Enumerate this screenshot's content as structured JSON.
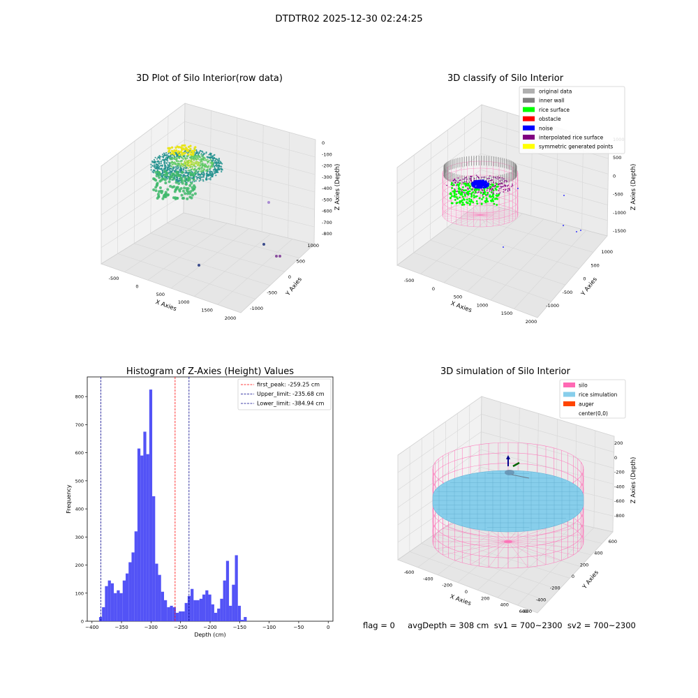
{
  "suptitle": "DTDTR02 2025-12-30 02:24:25",
  "colors": {
    "hist_bar": "#4a4af5",
    "first_peak_line": "#ff0000",
    "limit_line": "#00008b",
    "silo": "#ff69b4",
    "rice_simulation": "#87ceeb",
    "auger": "#ff4500",
    "original_data": "#b0b0b0",
    "inner_wall": "#808080",
    "rice_surface": "#00ff00",
    "obstacle": "#ff0000",
    "noise": "#0000ff",
    "interpolated_rice_surface": "#800080",
    "symmetric_generated_points": "#ffff00"
  },
  "chart_data": [
    {
      "type": "scatter",
      "title": "3D Plot of Silo Interior(row data)",
      "xlabel": "X Axies",
      "ylabel": "Y Axies",
      "zlabel": "Z Axies (Depth)",
      "x_ticks": [
        "-500",
        "0",
        "500",
        "1000",
        "1500",
        "2000"
      ],
      "y_ticks": [
        "-1000",
        "-500",
        "0",
        "500",
        "1000"
      ],
      "z_ticks": [
        "0",
        "-100",
        "-200",
        "-300",
        "-400",
        "-500",
        "-600",
        "-700",
        "-800"
      ],
      "xlim": [
        -700,
        2100
      ],
      "ylim": [
        -1200,
        1100
      ],
      "zlim": [
        -850,
        30
      ]
    },
    {
      "type": "scatter",
      "title": "3D classify of Silo Interior",
      "xlabel": "X Axies",
      "ylabel": "Y Axies",
      "zlabel": "Z Axies (Depth)",
      "x_ticks": [
        "-500",
        "0",
        "500",
        "1000",
        "1500",
        "2000"
      ],
      "y_ticks": [
        "-1000",
        "-500",
        "0",
        "500",
        "1000"
      ],
      "z_ticks": [
        "1000",
        "500",
        "0",
        "-500",
        "-1000",
        "-1500"
      ],
      "legend": [
        "original data",
        "inner wall",
        "rice surface",
        "obstacle",
        "noise",
        "interpolated rice surface",
        "symmetric generated points"
      ],
      "legend_loc": "top-right"
    },
    {
      "type": "bar",
      "title": "Histogram of Z-Axies (Height) Values",
      "xlabel": "Depth (cm)",
      "ylabel": "Frequency",
      "xlim": [
        -408,
        8
      ],
      "ylim": [
        0,
        870
      ],
      "x_ticks": [
        -400,
        -350,
        -300,
        -250,
        -200,
        -150,
        -100,
        -50,
        0
      ],
      "y_ticks": [
        0,
        100,
        200,
        300,
        400,
        500,
        600,
        700,
        800
      ],
      "bin_start": -388,
      "bin_width": 5,
      "values": [
        15,
        50,
        125,
        145,
        135,
        100,
        110,
        100,
        145,
        170,
        210,
        245,
        320,
        615,
        590,
        675,
        595,
        825,
        445,
        205,
        165,
        105,
        75,
        50,
        55,
        50,
        30,
        35,
        35,
        65,
        90,
        115,
        75,
        75,
        80,
        95,
        110,
        95,
        60,
        30,
        45,
        80,
        145,
        215,
        55,
        130,
        235,
        55,
        5,
        15
      ],
      "vlines": [
        {
          "label": "first_peak: -259.25 cm",
          "x": -259.25,
          "color": "red"
        },
        {
          "label": "Upper_limit: -235.68 cm",
          "x": -235.68,
          "color": "navy"
        },
        {
          "label": "Lower_limit: -384.94 cm",
          "x": -384.94,
          "color": "navy"
        }
      ],
      "legend_loc": "top-right"
    },
    {
      "type": "scatter",
      "title": "3D simulation of Silo Interior",
      "xlabel": "X Axies",
      "ylabel": "Y Axies",
      "zlabel": "Z Axies (Depth)",
      "x_ticks": [
        "-600",
        "-400",
        "-200",
        "0",
        "200",
        "400",
        "600"
      ],
      "y_ticks": [
        "-600",
        "-400",
        "-200",
        "0",
        "200",
        "400",
        "600"
      ],
      "z_ticks": [
        "200",
        "0",
        "-200",
        "-400",
        "-600",
        "-800"
      ],
      "legend": [
        "silo",
        "rice simulation",
        "auger",
        "center(0,0)"
      ],
      "legend_loc": "top-right"
    }
  ],
  "footer": {
    "text": "flag = 0     avgDepth = 308 cm  sv1 = 700~2300  sv2 = 700~2300"
  }
}
